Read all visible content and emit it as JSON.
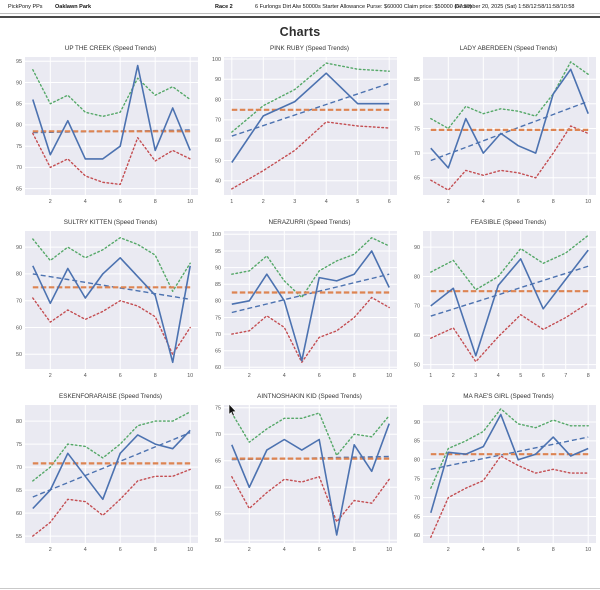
{
  "header": {
    "app": "PickPony PPs",
    "track": "Oaklawn Park",
    "race": "Race 2",
    "conditions": "6 Furlongs Dirt Alw 50000s Starter Allowance Purse: $60000 Claim price: $50000 (67.80)",
    "date": "December 20, 2025 (Sat) 1:58/12:58/11:58/10:58"
  },
  "page_title": "Charts",
  "colors": {
    "speed_line": "#4C72B0",
    "trend_line": "#4C72B0",
    "upper_band": "#55A868",
    "lower_band": "#C44E52",
    "mean_line": "#DD8452",
    "plot_bg": "#EAEAF2",
    "grid": "#FFFFFF",
    "tick_text": "#555555"
  },
  "chart_data": [
    {
      "type": "line",
      "title": "UP THE CREEK (Speed Trends)",
      "x": [
        1,
        2,
        3,
        4,
        5,
        6,
        7,
        8,
        9,
        10
      ],
      "xticks": [
        2,
        4,
        6,
        8,
        10
      ],
      "yticks": [
        65,
        70,
        75,
        80,
        85,
        90,
        95
      ],
      "ylim": [
        63.5,
        96
      ],
      "series": [
        {
          "name": "trend",
          "style": "dashed",
          "color": "#4C72B0",
          "values": [
            78.2,
            78.8
          ]
        },
        {
          "name": "upper",
          "style": "dotted",
          "color": "#55A868",
          "values": [
            93,
            85,
            87,
            83,
            82,
            83,
            91,
            87,
            89,
            86
          ]
        },
        {
          "name": "lower",
          "style": "dotted",
          "color": "#C44E52",
          "values": [
            78,
            70,
            72,
            68,
            66.5,
            66,
            77,
            71.5,
            74,
            72
          ]
        },
        {
          "name": "mean",
          "style": "dashed-wide",
          "color": "#DD8452",
          "values": [
            78.5,
            78.5
          ]
        },
        {
          "name": "speed",
          "style": "solid",
          "color": "#4C72B0",
          "values": [
            86,
            73,
            81,
            72,
            72,
            75,
            94,
            74,
            84,
            74
          ]
        }
      ]
    },
    {
      "type": "line",
      "title": "PINK RUBY (Speed Trends)",
      "x": [
        1,
        2,
        3,
        4,
        5,
        6
      ],
      "xticks": [
        1,
        2,
        3,
        4,
        5,
        6
      ],
      "yticks": [
        40,
        50,
        60,
        70,
        80,
        90,
        100
      ],
      "ylim": [
        33,
        101
      ],
      "series": [
        {
          "name": "trend",
          "style": "dashed",
          "color": "#4C72B0",
          "values": [
            62,
            88
          ]
        },
        {
          "name": "upper",
          "style": "dotted",
          "color": "#55A868",
          "values": [
            64,
            77,
            85,
            98,
            95,
            94
          ]
        },
        {
          "name": "lower",
          "style": "dotted",
          "color": "#C44E52",
          "values": [
            36,
            45,
            55,
            69,
            67,
            66
          ]
        },
        {
          "name": "mean",
          "style": "dashed-wide",
          "color": "#DD8452",
          "values": [
            75,
            75
          ]
        },
        {
          "name": "speed",
          "style": "solid",
          "color": "#4C72B0",
          "values": [
            49,
            72,
            79,
            93,
            78,
            78
          ]
        }
      ]
    },
    {
      "type": "line",
      "title": "LADY ABERDEEN (Speed Trends)",
      "x": [
        1,
        2,
        3,
        4,
        5,
        6,
        7,
        8,
        9,
        10
      ],
      "xticks": [
        2,
        4,
        6,
        8,
        10
      ],
      "yticks": [
        65,
        70,
        75,
        80,
        85
      ],
      "ylim": [
        61.5,
        89.5
      ],
      "series": [
        {
          "name": "trend",
          "style": "dashed",
          "color": "#4C72B0",
          "values": [
            68.5,
            80.5
          ]
        },
        {
          "name": "upper",
          "style": "dotted",
          "color": "#55A868",
          "values": [
            77,
            75,
            79.5,
            78,
            79,
            78.5,
            77.5,
            82,
            88.5,
            86
          ]
        },
        {
          "name": "lower",
          "style": "dotted",
          "color": "#C44E52",
          "values": [
            64.5,
            62.5,
            66.5,
            65.5,
            66.5,
            66,
            65,
            70,
            75.5,
            74
          ]
        },
        {
          "name": "mean",
          "style": "dashed-wide",
          "color": "#DD8452",
          "values": [
            74.7,
            74.7
          ]
        },
        {
          "name": "speed",
          "style": "solid",
          "color": "#4C72B0",
          "values": [
            71,
            67,
            77,
            70,
            74,
            71.5,
            70,
            82,
            87,
            78
          ]
        }
      ]
    },
    {
      "type": "line",
      "title": "SULTRY KITTEN (Speed Trends)",
      "x": [
        1,
        2,
        3,
        4,
        5,
        6,
        7,
        8,
        9,
        10
      ],
      "xticks": [
        2,
        4,
        6,
        8,
        10
      ],
      "yticks": [
        50,
        60,
        70,
        80,
        90
      ],
      "ylim": [
        44.5,
        96
      ],
      "series": [
        {
          "name": "trend",
          "style": "dashed",
          "color": "#4C72B0",
          "values": [
            80,
            70.5
          ]
        },
        {
          "name": "upper",
          "style": "dotted",
          "color": "#55A868",
          "values": [
            93,
            85,
            90,
            86,
            89,
            93.5,
            91,
            87,
            73.5,
            84
          ]
        },
        {
          "name": "lower",
          "style": "dotted",
          "color": "#C44E52",
          "values": [
            71,
            62,
            66.5,
            63,
            66,
            70,
            68,
            64,
            50,
            60
          ]
        },
        {
          "name": "mean",
          "style": "dashed-wide",
          "color": "#DD8452",
          "values": [
            75,
            75
          ]
        },
        {
          "name": "speed",
          "style": "solid",
          "color": "#4C72B0",
          "values": [
            83,
            69,
            82,
            71,
            80,
            86,
            79,
            72,
            47,
            83
          ]
        }
      ]
    },
    {
      "type": "line",
      "title": "NERAZURRI (Speed Trends)",
      "x": [
        1,
        2,
        3,
        4,
        5,
        6,
        7,
        8,
        9,
        10
      ],
      "xticks": [
        2,
        4,
        6,
        8,
        10
      ],
      "yticks": [
        60,
        65,
        70,
        75,
        80,
        85,
        90,
        95,
        100
      ],
      "ylim": [
        59.5,
        101
      ],
      "series": [
        {
          "name": "trend",
          "style": "dashed",
          "color": "#4C72B0",
          "values": [
            76.5,
            88
          ]
        },
        {
          "name": "upper",
          "style": "dotted",
          "color": "#55A868",
          "values": [
            88,
            89,
            93.5,
            86,
            81,
            89,
            92,
            94,
            99,
            96.5
          ]
        },
        {
          "name": "lower",
          "style": "dotted",
          "color": "#C44E52",
          "values": [
            70,
            71,
            75.5,
            72,
            61.5,
            69,
            71,
            75,
            81,
            78
          ]
        },
        {
          "name": "mean",
          "style": "dashed-wide",
          "color": "#DD8452",
          "values": [
            82.5,
            82.5
          ]
        },
        {
          "name": "speed",
          "style": "solid",
          "color": "#4C72B0",
          "values": [
            79,
            80,
            88,
            80,
            62,
            87,
            86,
            88,
            95,
            84
          ]
        }
      ]
    },
    {
      "type": "line",
      "title": "FEASIBLE (Speed Trends)",
      "x": [
        1,
        2,
        3,
        4,
        5,
        6,
        7,
        8
      ],
      "xticks": [
        1,
        2,
        3,
        4,
        5,
        6,
        7,
        8
      ],
      "yticks": [
        50,
        60,
        70,
        80,
        90
      ],
      "ylim": [
        48.5,
        95.5
      ],
      "series": [
        {
          "name": "trend",
          "style": "dashed",
          "color": "#4C72B0",
          "values": [
            66.5,
            83.5
          ]
        },
        {
          "name": "upper",
          "style": "dotted",
          "color": "#55A868",
          "values": [
            81.5,
            85.5,
            75.5,
            80,
            89.5,
            84.5,
            88,
            94
          ]
        },
        {
          "name": "lower",
          "style": "dotted",
          "color": "#C44E52",
          "values": [
            59,
            62.5,
            51,
            59.5,
            67,
            62,
            66,
            71
          ]
        },
        {
          "name": "mean",
          "style": "dashed-wide",
          "color": "#DD8452",
          "values": [
            75,
            75
          ]
        },
        {
          "name": "speed",
          "style": "solid",
          "color": "#4C72B0",
          "values": [
            70,
            76,
            53,
            77,
            86,
            69,
            79,
            89
          ]
        }
      ]
    },
    {
      "type": "line",
      "title": "ESKENFORARAISE (Speed Trends)",
      "x": [
        1,
        2,
        3,
        4,
        5,
        6,
        7,
        8,
        9,
        10
      ],
      "xticks": [
        2,
        4,
        6,
        8,
        10
      ],
      "yticks": [
        55,
        60,
        65,
        70,
        75,
        80
      ],
      "ylim": [
        53.5,
        83.5
      ],
      "series": [
        {
          "name": "trend",
          "style": "dashed",
          "color": "#4C72B0",
          "values": [
            63.5,
            77.5
          ]
        },
        {
          "name": "upper",
          "style": "dotted",
          "color": "#55A868",
          "values": [
            67,
            70,
            75,
            74.5,
            72,
            75,
            79,
            80,
            80,
            82
          ]
        },
        {
          "name": "lower",
          "style": "dotted",
          "color": "#C44E52",
          "values": [
            55,
            58,
            63,
            62.5,
            59.5,
            63,
            67,
            68,
            68,
            69.5
          ]
        },
        {
          "name": "mean",
          "style": "dashed-wide",
          "color": "#DD8452",
          "values": [
            70.8,
            70.8
          ]
        },
        {
          "name": "speed",
          "style": "solid",
          "color": "#4C72B0",
          "values": [
            61,
            65,
            73,
            68,
            63,
            73,
            77,
            75,
            74,
            78
          ]
        }
      ]
    },
    {
      "type": "line",
      "title": "AINTNOSHAKIN KID (Speed Trends)",
      "x": [
        1,
        2,
        3,
        4,
        5,
        6,
        7,
        8,
        9,
        10
      ],
      "xticks": [
        2,
        4,
        6,
        8,
        10
      ],
      "yticks": [
        50,
        55,
        60,
        65,
        70,
        75
      ],
      "ylim": [
        49.5,
        75.5
      ],
      "series": [
        {
          "name": "trend",
          "style": "dashed",
          "color": "#4C72B0",
          "values": [
            65.2,
            65.8
          ]
        },
        {
          "name": "upper",
          "style": "dotted",
          "color": "#55A868",
          "values": [
            74,
            68.5,
            71,
            73,
            73,
            74,
            66,
            70,
            69.5,
            73.5
          ]
        },
        {
          "name": "lower",
          "style": "dotted",
          "color": "#C44E52",
          "values": [
            62,
            56,
            59,
            61.5,
            61,
            62,
            53.5,
            57.5,
            57,
            61.5
          ]
        },
        {
          "name": "mean",
          "style": "dashed-wide",
          "color": "#DD8452",
          "values": [
            65.4,
            65.4
          ]
        },
        {
          "name": "speed",
          "style": "solid",
          "color": "#4C72B0",
          "values": [
            68,
            60,
            67,
            69,
            67,
            69,
            51,
            68,
            63,
            72
          ]
        }
      ]
    },
    {
      "type": "line",
      "title": "MA RAE'S GIRL (Speed Trends)",
      "x": [
        1,
        2,
        3,
        4,
        5,
        6,
        7,
        8,
        9,
        10
      ],
      "xticks": [
        2,
        4,
        6,
        8,
        10
      ],
      "yticks": [
        60,
        65,
        70,
        75,
        80,
        85,
        90
      ],
      "ylim": [
        58,
        94.5
      ],
      "series": [
        {
          "name": "trend",
          "style": "dashed",
          "color": "#4C72B0",
          "values": [
            77.5,
            86
          ]
        },
        {
          "name": "upper",
          "style": "dotted",
          "color": "#55A868",
          "values": [
            72.5,
            83,
            85,
            87.5,
            93.5,
            89.5,
            88.5,
            90.5,
            89,
            89
          ]
        },
        {
          "name": "lower",
          "style": "dotted",
          "color": "#C44E52",
          "values": [
            59.5,
            70,
            72.5,
            74.5,
            81,
            78.5,
            76.5,
            77.5,
            76.5,
            76.5
          ]
        },
        {
          "name": "mean",
          "style": "dashed-wide",
          "color": "#DD8452",
          "values": [
            81.5,
            81.5
          ]
        },
        {
          "name": "speed",
          "style": "solid",
          "color": "#4C72B0",
          "values": [
            66,
            82,
            81.5,
            83.5,
            92,
            80,
            81.5,
            86,
            81,
            83
          ]
        }
      ]
    }
  ]
}
